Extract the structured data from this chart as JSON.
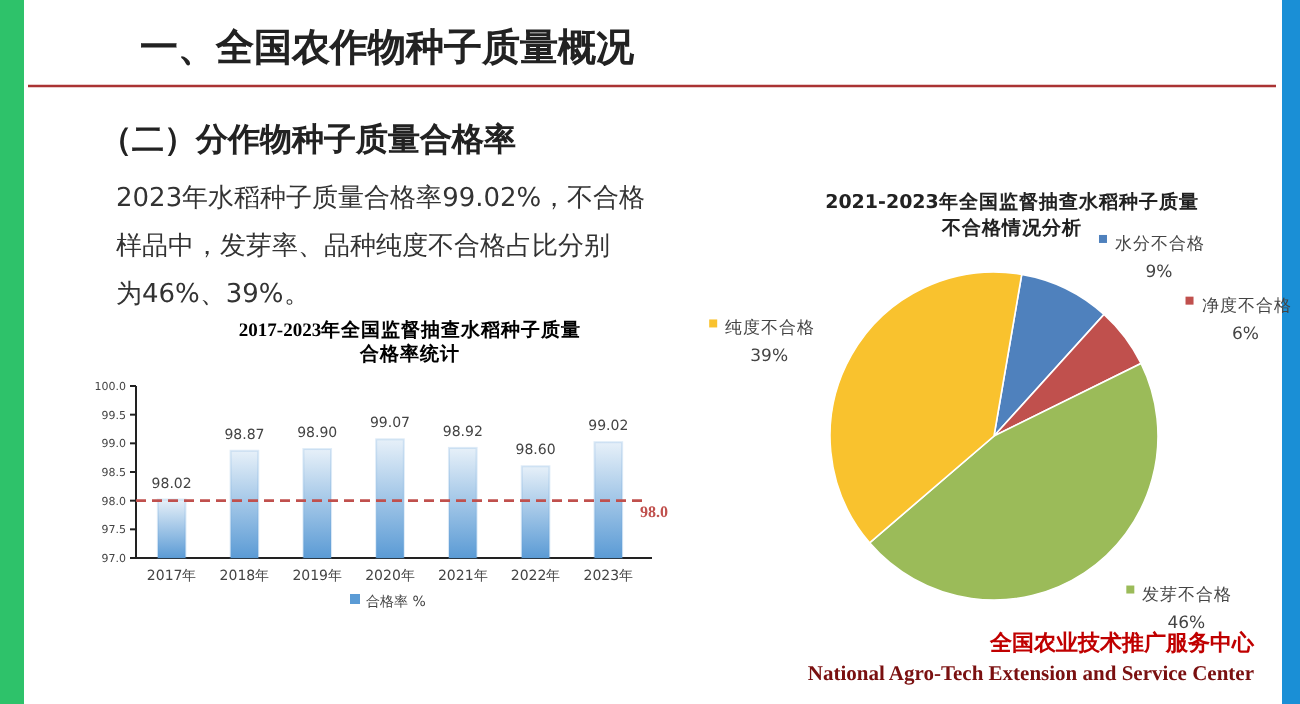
{
  "chart_data": [
    {
      "type": "other",
      "title": "一、全国农作物种子质量概况",
      "subtitle": "（二）分作物种子质量合格率",
      "annotations": [
        "2023年水稻种子质量合格率99.02%，不合格",
        "样品中，发芽率、品种纯度不合格占比分别",
        "为46%、39%。",
        "全国农业技术推广服务中心",
        "National Agro-Tech Extension and Service Center"
      ]
    },
    {
      "type": "bar",
      "title": "2017-2023年全国监督抽查水稻种子质量合格率统计",
      "categories": [
        "2017年",
        "2018年",
        "2019年",
        "2020年",
        "2021年",
        "2022年",
        "2023年"
      ],
      "series": [
        {
          "name": "合格率 %",
          "color": "#5b9bd5",
          "values": [
            98.02,
            98.87,
            98.9,
            99.07,
            98.92,
            98.6,
            99.02
          ]
        }
      ],
      "value_labels": [
        "98.02",
        "98.87",
        "98.90",
        "99.07",
        "98.92",
        "98.60",
        "99.02"
      ],
      "ylim": [
        97,
        100
      ],
      "yticks": [
        {
          "value": 97,
          "label": "97.0"
        },
        {
          "value": 97.5,
          "label": "97.5"
        },
        {
          "value": 98,
          "label": "98.0"
        },
        {
          "value": 98.5,
          "label": "98.5"
        },
        {
          "value": 99,
          "label": "99.0"
        },
        {
          "value": 99.5,
          "label": "99.5"
        },
        {
          "value": 100,
          "label": "100.0"
        }
      ],
      "ref_lines": [
        {
          "axis": "y",
          "value": 98,
          "label": "98.0",
          "color": "#c0504d",
          "line_style": "dashed"
        }
      ],
      "grid": false,
      "legend": "bottom"
    },
    {
      "type": "pie",
      "title": "2021-2023年全国监督抽查水稻种子质量不合格情况分析",
      "legend": "right",
      "categories": [
        "水分不合格",
        "净度不合格",
        "发芽不合格",
        "纯度不合格"
      ],
      "values": [
        9,
        6,
        46,
        39
      ],
      "colors": [
        "#4f81bd",
        "#c0504d",
        "#9bbb59",
        "#f9c22e"
      ],
      "value_labels": [
        "9%",
        "6%",
        "46%",
        "39%"
      ]
    }
  ]
}
